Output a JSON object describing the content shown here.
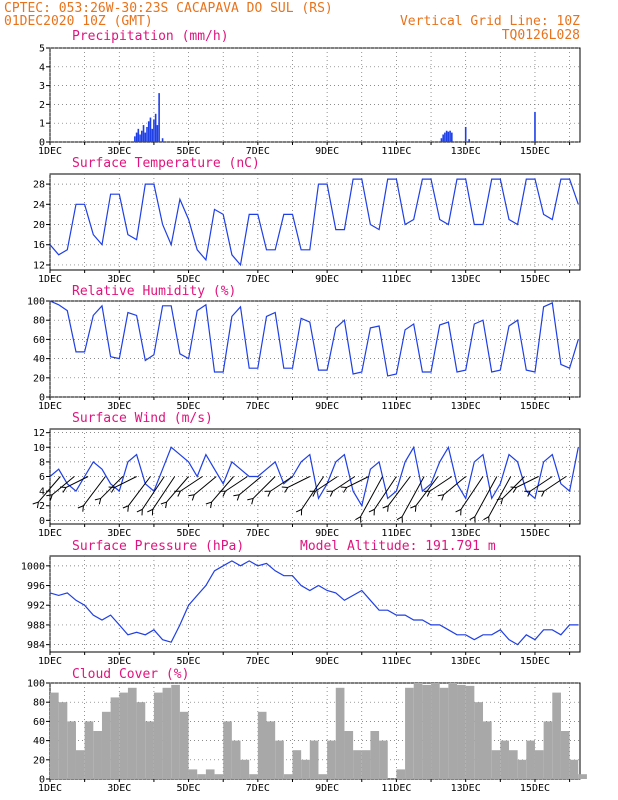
{
  "header": {
    "location": "CPTEC:  053:26W-30:23S  CACAPAVA DO SUL (RS)",
    "run": "01DEC2020 10Z (GMT)",
    "grid_note": "Vertical Grid Line: 10Z",
    "code": "TQ0126L028"
  },
  "colors": {
    "header": "#e8731c",
    "panel_title": "#e0147e",
    "line": "#1f3fe6",
    "cloud": "#a8a8a8"
  },
  "chart_data": [
    {
      "type": "bar",
      "title": "Precipitation (mm/h)",
      "ylim": [
        0,
        5
      ],
      "yticks": [
        0,
        1,
        2,
        3,
        4,
        5
      ],
      "xticks": [
        "1DEC",
        "3DEC",
        "5DEC",
        "7DEC",
        "9DEC",
        "11DEC",
        "13DEC",
        "15DEC"
      ],
      "x_unit": "day offset from 01DEC 10Z",
      "bars": [
        [
          2.45,
          0.3
        ],
        [
          2.5,
          0.5
        ],
        [
          2.55,
          0.7
        ],
        [
          2.6,
          0.4
        ],
        [
          2.65,
          0.6
        ],
        [
          2.7,
          0.9
        ],
        [
          2.75,
          0.5
        ],
        [
          2.8,
          0.8
        ],
        [
          2.85,
          1.1
        ],
        [
          2.9,
          1.3
        ],
        [
          2.95,
          0.7
        ],
        [
          3.0,
          1.2
        ],
        [
          3.05,
          1.5
        ],
        [
          3.1,
          0.9
        ],
        [
          3.15,
          2.6
        ],
        [
          3.25,
          0.2
        ],
        [
          11.3,
          0.2
        ],
        [
          11.35,
          0.4
        ],
        [
          11.4,
          0.5
        ],
        [
          11.45,
          0.6
        ],
        [
          11.5,
          0.55
        ],
        [
          11.55,
          0.6
        ],
        [
          11.6,
          0.5
        ],
        [
          12.0,
          0.8
        ],
        [
          12.1,
          0.15
        ],
        [
          14.0,
          1.6
        ]
      ]
    },
    {
      "type": "line",
      "title": "Surface Temperature (nC)",
      "ylim": [
        11,
        30
      ],
      "yticks": [
        12,
        16,
        20,
        24,
        28
      ],
      "xticks": [
        "1DEC",
        "3DEC",
        "5DEC",
        "7DEC",
        "9DEC",
        "11DEC",
        "13DEC",
        "15DEC"
      ],
      "x": [
        0,
        0.25,
        0.5,
        0.75,
        1,
        1.25,
        1.5,
        1.75,
        2,
        2.25,
        2.5,
        2.75,
        3,
        3.25,
        3.5,
        3.75,
        4,
        4.25,
        4.5,
        4.75,
        5,
        5.25,
        5.5,
        5.75,
        6,
        6.25,
        6.5,
        6.75,
        7,
        7.25,
        7.5,
        7.75,
        8,
        8.25,
        8.5,
        8.75,
        9,
        9.25,
        9.5,
        9.75,
        10,
        10.25,
        10.5,
        10.75,
        11,
        11.25,
        11.5,
        11.75,
        12,
        12.25,
        12.5,
        12.75,
        13,
        13.25,
        13.5,
        13.75,
        14,
        14.25,
        14.5,
        14.75,
        15,
        15.25
      ],
      "values": [
        16,
        14,
        15,
        24,
        24,
        18,
        16,
        26,
        26,
        18,
        17,
        28,
        28,
        20,
        16,
        25,
        21,
        15,
        13,
        23,
        22,
        14,
        12,
        22,
        22,
        15,
        15,
        22,
        22,
        15,
        15,
        28,
        28,
        19,
        19,
        29,
        29,
        20,
        19,
        29,
        29,
        20,
        21,
        29,
        29,
        21,
        20,
        29,
        29,
        20,
        20,
        29,
        29,
        21,
        20,
        29,
        29,
        22,
        21,
        29,
        29,
        24
      ]
    },
    {
      "type": "line",
      "title": "Relative Humidity (%)",
      "ylim": [
        0,
        100
      ],
      "yticks": [
        0,
        20,
        40,
        60,
        80,
        100
      ],
      "xticks": [
        "1DEC",
        "3DEC",
        "5DEC",
        "7DEC",
        "9DEC",
        "11DEC",
        "13DEC",
        "15DEC"
      ],
      "x": [
        0,
        0.25,
        0.5,
        0.75,
        1,
        1.25,
        1.5,
        1.75,
        2,
        2.25,
        2.5,
        2.75,
        3,
        3.25,
        3.5,
        3.75,
        4,
        4.25,
        4.5,
        4.75,
        5,
        5.25,
        5.5,
        5.75,
        6,
        6.25,
        6.5,
        6.75,
        7,
        7.25,
        7.5,
        7.75,
        8,
        8.25,
        8.5,
        8.75,
        9,
        9.25,
        9.5,
        9.75,
        10,
        10.25,
        10.5,
        10.75,
        11,
        11.25,
        11.5,
        11.75,
        12,
        12.25,
        12.5,
        12.75,
        13,
        13.25,
        13.5,
        13.75,
        14,
        14.25,
        14.5,
        14.75,
        15,
        15.25
      ],
      "values": [
        100,
        96,
        90,
        47,
        47,
        85,
        95,
        42,
        40,
        88,
        85,
        38,
        44,
        95,
        95,
        45,
        40,
        90,
        96,
        26,
        26,
        84,
        94,
        30,
        30,
        84,
        88,
        30,
        30,
        82,
        78,
        28,
        28,
        72,
        80,
        24,
        26,
        72,
        74,
        22,
        24,
        70,
        76,
        26,
        26,
        75,
        78,
        26,
        28,
        76,
        80,
        26,
        28,
        74,
        80,
        28,
        26,
        94,
        98,
        34,
        30,
        60
      ]
    },
    {
      "type": "line",
      "title": "Surface Wind (m/s)",
      "ylim": [
        -0.5,
        12.5
      ],
      "yticks": [
        0,
        2,
        4,
        6,
        8,
        10,
        12
      ],
      "xticks": [
        "1DEC",
        "3DEC",
        "5DEC",
        "7DEC",
        "9DEC",
        "11DEC",
        "13DEC",
        "15DEC"
      ],
      "x": [
        0,
        0.25,
        0.5,
        0.75,
        1,
        1.25,
        1.5,
        1.75,
        2,
        2.25,
        2.5,
        2.75,
        3,
        3.25,
        3.5,
        3.75,
        4,
        4.25,
        4.5,
        4.75,
        5,
        5.25,
        5.5,
        5.75,
        6,
        6.25,
        6.5,
        6.75,
        7,
        7.25,
        7.5,
        7.75,
        8,
        8.25,
        8.5,
        8.75,
        9,
        9.25,
        9.5,
        9.75,
        10,
        10.25,
        10.5,
        10.75,
        11,
        11.25,
        11.5,
        11.75,
        12,
        12.25,
        12.5,
        12.75,
        13,
        13.25,
        13.5,
        13.75,
        14,
        14.25,
        14.5,
        14.75,
        15,
        15.25
      ],
      "values": [
        6,
        7,
        5,
        4,
        6,
        8,
        7,
        5,
        4,
        8,
        9,
        5,
        4,
        7,
        10,
        9,
        8,
        6,
        9,
        7,
        5,
        8,
        7,
        6,
        6,
        7,
        8,
        5,
        6,
        8,
        9,
        3,
        5,
        8,
        9,
        4,
        2,
        7,
        8,
        3,
        4,
        8,
        10,
        4,
        5,
        8,
        10,
        5,
        3,
        8,
        9,
        3,
        5,
        9,
        8,
        4,
        3,
        8,
        9,
        5,
        4,
        10
      ],
      "arrows": [
        [
          0.3,
          2.5
        ],
        [
          0.7,
          3.5
        ],
        [
          1.1,
          4.5
        ],
        [
          1.6,
          2.0
        ],
        [
          2.1,
          3.0
        ],
        [
          2.5,
          4.5
        ],
        [
          2.9,
          2.0
        ],
        [
          3.3,
          1.5
        ],
        [
          3.6,
          1.5
        ],
        [
          4.0,
          2.5
        ],
        [
          4.4,
          4.0
        ],
        [
          4.8,
          3.5
        ],
        [
          5.3,
          2.5
        ],
        [
          5.7,
          4.0
        ],
        [
          6.1,
          3.5
        ],
        [
          6.5,
          3.0
        ],
        [
          7.0,
          4.0
        ],
        [
          7.5,
          4.5
        ],
        [
          7.9,
          1.5
        ],
        [
          8.3,
          4.0
        ],
        [
          8.8,
          4.0
        ],
        [
          9.2,
          4.5
        ],
        [
          9.6,
          0.5
        ],
        [
          10.0,
          1.5
        ],
        [
          10.4,
          2.0
        ],
        [
          10.8,
          0.5
        ],
        [
          11.2,
          2.0
        ],
        [
          11.6,
          4.0
        ],
        [
          12.0,
          3.5
        ],
        [
          12.5,
          1.5
        ],
        [
          12.9,
          0.5
        ],
        [
          13.3,
          0.5
        ],
        [
          13.7,
          3.0
        ],
        [
          14.1,
          4.5
        ],
        [
          14.5,
          4.0
        ],
        [
          14.9,
          4.0
        ]
      ]
    },
    {
      "type": "line",
      "title": "Surface Pressure (hPa)",
      "annotation": "Model Altitude: 191.791 m",
      "ylim": [
        982.5,
        1002
      ],
      "yticks": [
        984,
        988,
        992,
        996,
        1000
      ],
      "xticks": [
        "1DEC",
        "3DEC",
        "5DEC",
        "7DEC",
        "9DEC",
        "11DEC",
        "13DEC",
        "15DEC"
      ],
      "x": [
        0,
        0.25,
        0.5,
        0.75,
        1,
        1.25,
        1.5,
        1.75,
        2,
        2.25,
        2.5,
        2.75,
        3,
        3.25,
        3.5,
        3.75,
        4,
        4.25,
        4.5,
        4.75,
        5,
        5.25,
        5.5,
        5.75,
        6,
        6.25,
        6.5,
        6.75,
        7,
        7.25,
        7.5,
        7.75,
        8,
        8.25,
        8.5,
        8.75,
        9,
        9.25,
        9.5,
        9.75,
        10,
        10.25,
        10.5,
        10.75,
        11,
        11.25,
        11.5,
        11.75,
        12,
        12.25,
        12.5,
        12.75,
        13,
        13.25,
        13.5,
        13.75,
        14,
        14.25,
        14.5,
        14.75,
        15,
        15.25
      ],
      "values": [
        994.5,
        994,
        994.5,
        993,
        992,
        990,
        989,
        990,
        988,
        986,
        986.5,
        986,
        987,
        985,
        984.5,
        988,
        992,
        994,
        996,
        999,
        1000,
        1001,
        1000,
        1001,
        1000,
        1000.5,
        999,
        998,
        998,
        996,
        995,
        996,
        995,
        994.5,
        993,
        994,
        995,
        993,
        991,
        991,
        990,
        990,
        989,
        989,
        988,
        988,
        987,
        986,
        986,
        985,
        986,
        986,
        987,
        985,
        984,
        986,
        985,
        987,
        987,
        986,
        988,
        988
      ]
    },
    {
      "type": "bar",
      "title": "Cloud Cover (%)",
      "ylim": [
        0,
        100
      ],
      "yticks": [
        0,
        20,
        40,
        60,
        80,
        100
      ],
      "xticks": [
        "1DEC",
        "3DEC",
        "5DEC",
        "7DEC",
        "9DEC",
        "11DEC",
        "13DEC",
        "15DEC"
      ],
      "x": [
        0,
        0.25,
        0.5,
        0.75,
        1,
        1.25,
        1.5,
        1.75,
        2,
        2.25,
        2.5,
        2.75,
        3,
        3.25,
        3.5,
        3.75,
        4,
        4.25,
        4.5,
        4.75,
        5,
        5.25,
        5.5,
        5.75,
        6,
        6.25,
        6.5,
        6.75,
        7,
        7.25,
        7.5,
        7.75,
        8,
        8.25,
        8.5,
        8.75,
        9,
        9.25,
        9.5,
        9.75,
        10,
        10.25,
        10.5,
        10.75,
        11,
        11.25,
        11.5,
        11.75,
        12,
        12.25,
        12.5,
        12.75,
        13,
        13.25,
        13.5,
        13.75,
        14,
        14.25,
        14.5,
        14.75,
        15,
        15.25
      ],
      "values": [
        90,
        80,
        60,
        30,
        60,
        50,
        70,
        85,
        90,
        95,
        80,
        60,
        90,
        95,
        98,
        70,
        10,
        5,
        10,
        5,
        60,
        40,
        20,
        5,
        70,
        60,
        40,
        5,
        30,
        20,
        40,
        5,
        40,
        95,
        50,
        30,
        30,
        50,
        40,
        0,
        10,
        95,
        100,
        98,
        100,
        95,
        100,
        98,
        97,
        80,
        60,
        30,
        40,
        30,
        20,
        40,
        30,
        60,
        90,
        50,
        20,
        5
      ]
    }
  ]
}
